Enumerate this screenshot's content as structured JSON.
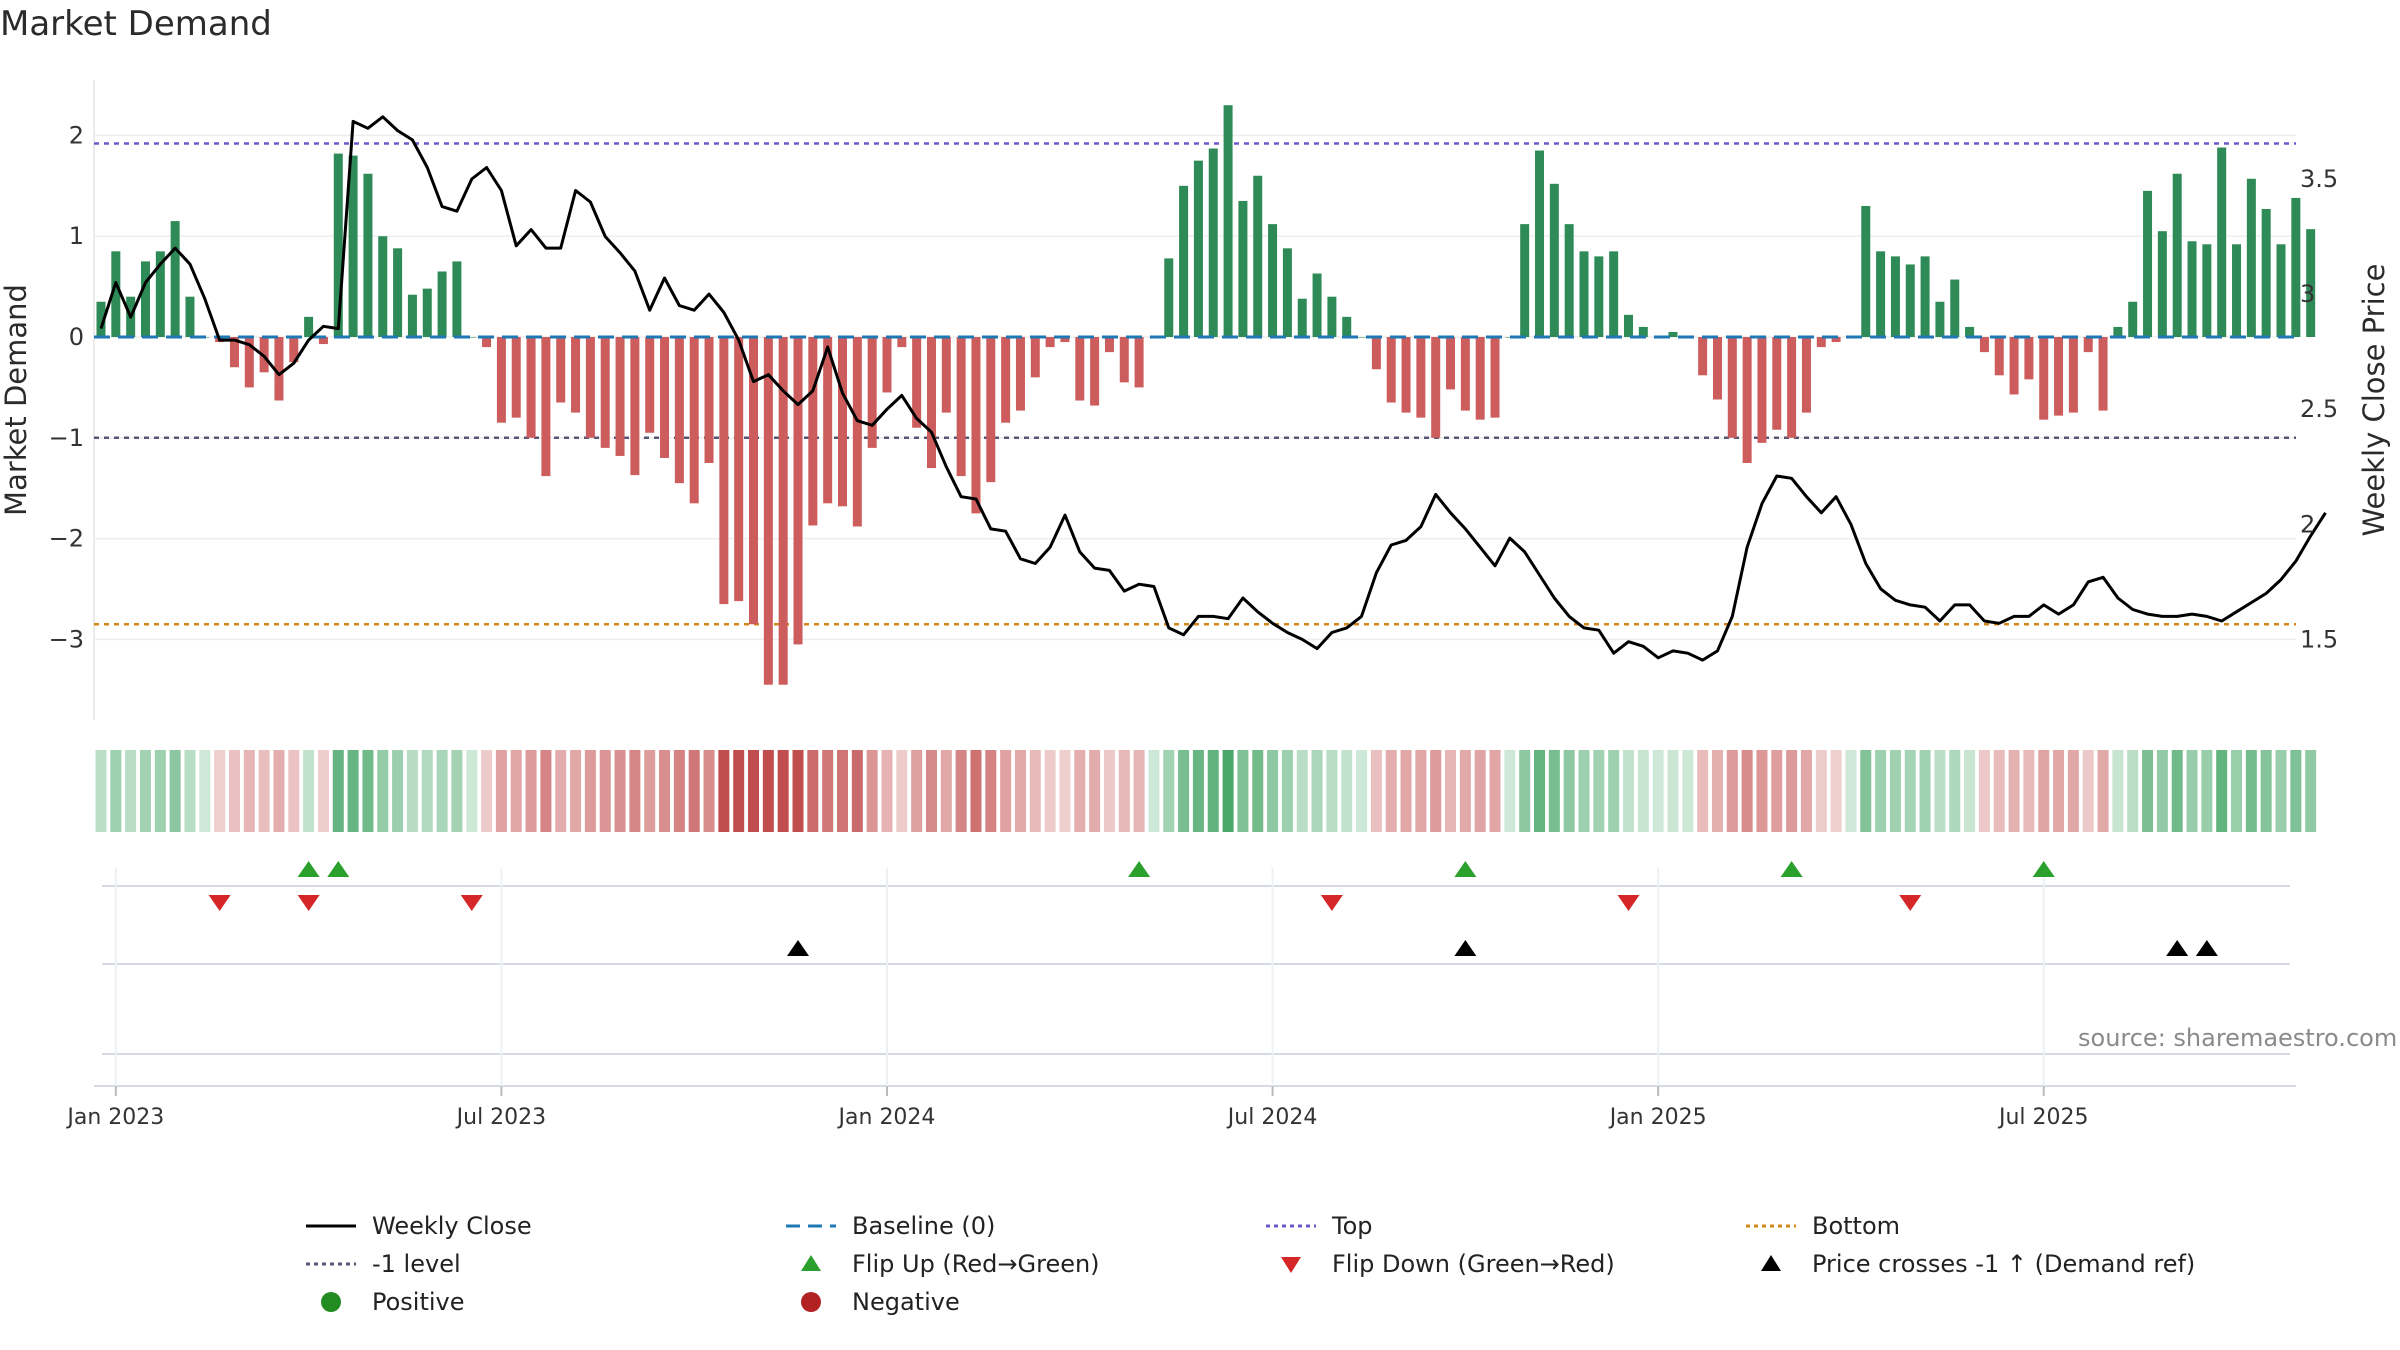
{
  "title": "Market Demand",
  "source": "source: sharemaestro.com",
  "colors": {
    "positive_bar": "#2e8b57",
    "negative_bar": "#cd5c5c",
    "price_line": "#000000",
    "baseline": "#1f77b4",
    "top_line": "#6a5acd",
    "minus1_line": "#555577",
    "bottom_line": "#d4881a",
    "flip_up": "#2ca02c",
    "flip_down": "#d62728",
    "cross": "#000000",
    "positive_dot": "#228b22",
    "negative_dot": "#b22222"
  },
  "chart_data": {
    "type": "bar+line",
    "title": "Market Demand",
    "ylabel_left": "Market Demand",
    "ylabel_right": "Weekly Close Price",
    "ylim_left": [
      -3.8,
      2.55
    ],
    "ylim_right": [
      1.15,
      3.93
    ],
    "yticks_left": [
      2,
      1,
      0,
      -1,
      -2,
      -3
    ],
    "yticks_left_labels": [
      "2",
      "1",
      "0",
      "−1",
      "−2",
      "−3"
    ],
    "yticks_right": [
      3.5,
      3,
      2.5,
      2,
      1.5
    ],
    "yticks_right_labels": [
      "3.5",
      "3",
      "2.5",
      "2",
      "1.5"
    ],
    "reference_lines": {
      "top": 1.92,
      "minus1": -1.0,
      "bottom": -2.85,
      "baseline": 0
    },
    "x_start_date": "2022-12-26",
    "x_week_count": 148,
    "x_ticks": [
      {
        "label": "Jan 2023",
        "week": 1
      },
      {
        "label": "Jul 2023",
        "week": 27
      },
      {
        "label": "Jan 2024",
        "week": 53
      },
      {
        "label": "Jul 2024",
        "week": 79
      },
      {
        "label": "Jan 2025",
        "week": 105
      },
      {
        "label": "Jul 2025",
        "week": 131
      }
    ],
    "series": [
      {
        "name": "Market Demand",
        "axis": "left",
        "values": [
          0.35,
          0.85,
          0.4,
          0.75,
          0.85,
          1.15,
          0.4,
          0.0,
          -0.05,
          -0.3,
          -0.5,
          -0.35,
          -0.63,
          -0.25,
          0.2,
          -0.07,
          1.82,
          1.8,
          1.62,
          1.0,
          0.88,
          0.42,
          0.48,
          0.65,
          0.75,
          0.0,
          -0.1,
          -0.85,
          -0.8,
          -1.0,
          -1.38,
          -0.65,
          -0.75,
          -1.0,
          -1.1,
          -1.18,
          -1.37,
          -0.95,
          -1.2,
          -1.45,
          -1.65,
          -1.25,
          -2.65,
          -2.62,
          -2.85,
          -3.45,
          -3.45,
          -3.05,
          -1.87,
          -1.65,
          -1.68,
          -1.88,
          -1.1,
          -0.55,
          -0.1,
          -0.9,
          -1.3,
          -0.75,
          -1.38,
          -1.75,
          -1.44,
          -0.85,
          -0.73,
          -0.4,
          -0.1,
          -0.05,
          -0.63,
          -0.68,
          -0.15,
          -0.45,
          -0.5,
          0.0,
          0.78,
          1.5,
          1.75,
          1.87,
          2.3,
          1.35,
          1.6,
          1.12,
          0.88,
          0.38,
          0.63,
          0.4,
          0.2,
          0.0,
          -0.32,
          -0.65,
          -0.75,
          -0.8,
          -1.0,
          -0.52,
          -0.73,
          -0.82,
          -0.8,
          0.0,
          1.12,
          1.85,
          1.52,
          1.12,
          0.85,
          0.8,
          0.85,
          0.22,
          0.1,
          0.0,
          0.05,
          0.0,
          -0.38,
          -0.62,
          -1.0,
          -1.25,
          -1.05,
          -0.92,
          -1.0,
          -0.75,
          -0.1,
          -0.05,
          0.0,
          1.3,
          0.85,
          0.8,
          0.72,
          0.8,
          0.35,
          0.57,
          0.1,
          -0.15,
          -0.38,
          -0.57,
          -0.42,
          -0.82,
          -0.78,
          -0.75,
          -0.15,
          -0.73,
          0.1,
          0.35,
          1.45,
          1.05,
          1.62,
          0.95,
          0.92,
          1.88,
          0.92,
          1.57,
          1.27,
          0.92,
          1.38,
          1.07
        ]
      },
      {
        "name": "Weekly Close",
        "axis": "right",
        "values": [
          2.85,
          3.05,
          2.9,
          3.05,
          3.13,
          3.2,
          3.13,
          2.98,
          2.8,
          2.8,
          2.78,
          2.73,
          2.65,
          2.7,
          2.8,
          2.86,
          2.85,
          3.75,
          3.72,
          3.77,
          3.71,
          3.67,
          3.55,
          3.38,
          3.36,
          3.5,
          3.55,
          3.45,
          3.21,
          3.28,
          3.2,
          3.2,
          3.45,
          3.4,
          3.25,
          3.18,
          3.1,
          2.93,
          3.07,
          2.95,
          2.93,
          3.0,
          2.92,
          2.8,
          2.62,
          2.65,
          2.58,
          2.52,
          2.58,
          2.77,
          2.57,
          2.45,
          2.43,
          2.5,
          2.56,
          2.46,
          2.4,
          2.25,
          2.12,
          2.11,
          1.98,
          1.97,
          1.85,
          1.83,
          1.9,
          2.04,
          1.88,
          1.81,
          1.8,
          1.71,
          1.74,
          1.73,
          1.55,
          1.52,
          1.6,
          1.6,
          1.59,
          1.68,
          1.62,
          1.57,
          1.53,
          1.5,
          1.46,
          1.53,
          1.55,
          1.6,
          1.79,
          1.91,
          1.93,
          1.99,
          2.13,
          2.05,
          1.98,
          1.9,
          1.82,
          1.94,
          1.88,
          1.78,
          1.68,
          1.6,
          1.55,
          1.54,
          1.44,
          1.49,
          1.47,
          1.42,
          1.45,
          1.44,
          1.41,
          1.45,
          1.6,
          1.9,
          2.09,
          2.21,
          2.2,
          2.12,
          2.05,
          2.12,
          2.0,
          1.83,
          1.72,
          1.67,
          1.65,
          1.64,
          1.58,
          1.65,
          1.65,
          1.58,
          1.57,
          1.6,
          1.6,
          1.65,
          1.61,
          1.65,
          1.75,
          1.77,
          1.68,
          1.63,
          1.61,
          1.6,
          1.6,
          1.61,
          1.6,
          1.58,
          1.62,
          1.66,
          1.7,
          1.76,
          1.84,
          1.95,
          2.05
        ]
      }
    ],
    "heatmap_strip": "one cell per week shaded green (positive) or red (negative) with intensity by magnitude",
    "events": {
      "flip_up_weeks": [
        14,
        16,
        70,
        92,
        114,
        131
      ],
      "flip_down_weeks": [
        8,
        14,
        25,
        83,
        103,
        122
      ],
      "price_cross_weeks": [
        47,
        92,
        140,
        142
      ]
    }
  },
  "legend": {
    "items": [
      {
        "label": "Weekly Close",
        "symbol": "solid-line"
      },
      {
        "label": "Baseline (0)",
        "symbol": "dashed-line"
      },
      {
        "label": "Top",
        "symbol": "dotted-line"
      },
      {
        "label": "Bottom",
        "symbol": "dotted-line"
      },
      {
        "label": "-1 level",
        "symbol": "dotted-line"
      },
      {
        "label": "Flip Up (Red→Green)",
        "symbol": "triangle-up"
      },
      {
        "label": "Flip Down (Green→Red)",
        "symbol": "triangle-down"
      },
      {
        "label": "Price crosses -1 ↑ (Demand ref)",
        "symbol": "triangle-up"
      },
      {
        "label": "Positive",
        "symbol": "dot"
      },
      {
        "label": "Negative",
        "symbol": "dot"
      }
    ]
  }
}
